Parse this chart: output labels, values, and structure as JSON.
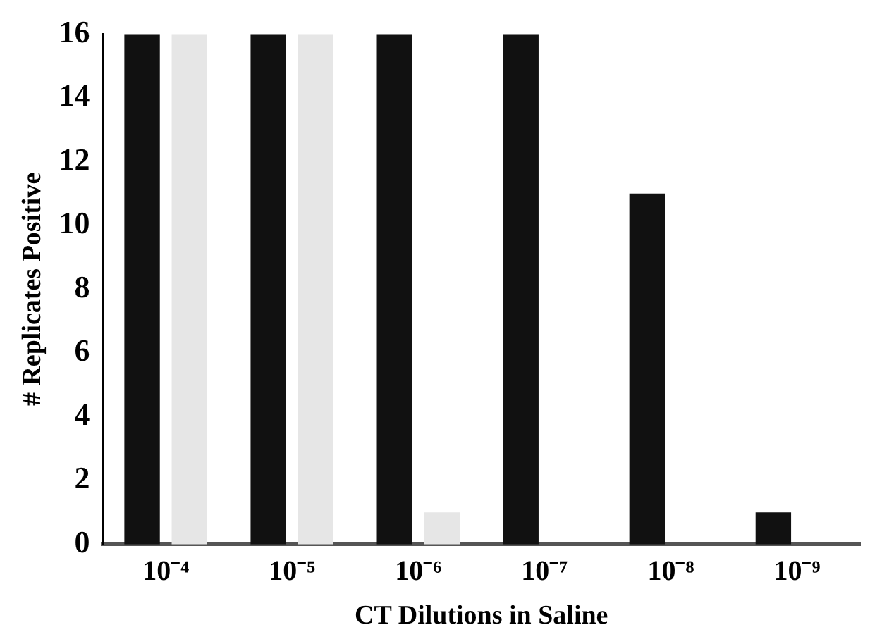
{
  "chart_data": {
    "type": "bar",
    "xlabel": "CT Dilutions in Saline",
    "ylabel": "# Replicates Positive",
    "categories": [
      "10⁻⁴",
      "10⁻⁵",
      "10⁻⁶",
      "10⁻⁷",
      "10⁻⁸",
      "10⁻⁹"
    ],
    "series": [
      {
        "color": "#111111",
        "values": [
          16,
          16,
          16,
          16,
          11,
          1
        ]
      },
      {
        "color": "#e6e6e6",
        "values": [
          16,
          16,
          1,
          0,
          0,
          0
        ]
      }
    ],
    "ylim": [
      0,
      16
    ],
    "yticks": [
      0,
      2,
      4,
      6,
      8,
      10,
      12,
      14,
      16
    ],
    "grid": false,
    "legend": false
  }
}
